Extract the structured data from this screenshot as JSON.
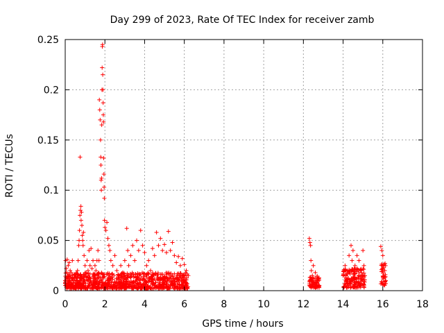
{
  "chart_data": {
    "type": "scatter",
    "title": "Day 299 of 2023, Rate Of TEC Index for receiver zamb",
    "xlabel": "GPS time / hours",
    "ylabel": "ROTI / TECUs",
    "xlim": [
      0,
      18
    ],
    "ylim": [
      0,
      0.25
    ],
    "x_ticks": [
      0,
      2,
      4,
      6,
      8,
      10,
      12,
      14,
      16,
      18
    ],
    "y_ticks": [
      0,
      0.05,
      0.1,
      0.15,
      0.2,
      0.25
    ],
    "x_tick_labels": [
      "0",
      "2",
      "4",
      "6",
      "8",
      "10",
      "12",
      "14",
      "16",
      "18"
    ],
    "y_tick_labels": [
      "0",
      "0.05",
      "0.1",
      "0.15",
      "0.2",
      "0.25"
    ],
    "grid": true,
    "marker": "+",
    "color": "#ff0000",
    "series": [
      {
        "values": [
          [
            0.0,
            0.01
          ],
          [
            0.02,
            0.03
          ],
          [
            0.05,
            0.022
          ],
          [
            0.08,
            0.018
          ],
          [
            0.1,
            0.031
          ],
          [
            0.12,
            0.012
          ],
          [
            0.15,
            0.025
          ],
          [
            0.18,
            0.008
          ],
          [
            0.2,
            0.028
          ],
          [
            0.22,
            0.015
          ],
          [
            0.25,
            0.02
          ],
          [
            0.28,
            0.005
          ],
          [
            0.3,
            0.018
          ],
          [
            0.33,
            0.012
          ],
          [
            0.36,
            0.03
          ],
          [
            0.4,
            0.01
          ],
          [
            0.45,
            0.016
          ],
          [
            0.5,
            0.008
          ],
          [
            0.55,
            0.014
          ],
          [
            0.6,
            0.01
          ],
          [
            0.62,
            0.02
          ],
          [
            0.65,
            0.03
          ],
          [
            0.68,
            0.045
          ],
          [
            0.7,
            0.05
          ],
          [
            0.72,
            0.06
          ],
          [
            0.74,
            0.075
          ],
          [
            0.75,
            0.133
          ],
          [
            0.77,
            0.08
          ],
          [
            0.79,
            0.084
          ],
          [
            0.8,
            0.07
          ],
          [
            0.82,
            0.078
          ],
          [
            0.84,
            0.065
          ],
          [
            0.86,
            0.055
          ],
          [
            0.88,
            0.05
          ],
          [
            0.9,
            0.045
          ],
          [
            0.92,
            0.058
          ],
          [
            0.95,
            0.035
          ],
          [
            1.0,
            0.025
          ],
          [
            1.05,
            0.018
          ],
          [
            1.1,
            0.03
          ],
          [
            1.15,
            0.02
          ],
          [
            1.2,
            0.04
          ],
          [
            1.25,
            0.025
          ],
          [
            1.3,
            0.042
          ],
          [
            1.35,
            0.022
          ],
          [
            1.4,
            0.03
          ],
          [
            1.45,
            0.015
          ],
          [
            1.5,
            0.025
          ],
          [
            1.55,
            0.02
          ],
          [
            1.6,
            0.03
          ],
          [
            1.65,
            0.04
          ],
          [
            1.7,
            0.03
          ],
          [
            1.72,
            0.19
          ],
          [
            1.74,
            0.18
          ],
          [
            1.76,
            0.17
          ],
          [
            1.78,
            0.15
          ],
          [
            1.79,
            0.133
          ],
          [
            1.8,
            0.125
          ],
          [
            1.81,
            0.11
          ],
          [
            1.82,
            0.1
          ],
          [
            1.83,
            0.112
          ],
          [
            1.84,
            0.165
          ],
          [
            1.85,
            0.2
          ],
          [
            1.86,
            0.222
          ],
          [
            1.87,
            0.243
          ],
          [
            1.88,
            0.245
          ],
          [
            1.89,
            0.215
          ],
          [
            1.9,
            0.2
          ],
          [
            1.91,
            0.187
          ],
          [
            1.92,
            0.175
          ],
          [
            1.93,
            0.168
          ],
          [
            1.94,
            0.132
          ],
          [
            1.95,
            0.116
          ],
          [
            1.96,
            0.103
          ],
          [
            1.97,
            0.092
          ],
          [
            1.98,
            0.07
          ],
          [
            2.0,
            0.063
          ],
          [
            2.05,
            0.06
          ],
          [
            2.1,
            0.068
          ],
          [
            2.15,
            0.052
          ],
          [
            2.2,
            0.045
          ],
          [
            2.25,
            0.04
          ],
          [
            2.3,
            0.03
          ],
          [
            2.4,
            0.025
          ],
          [
            2.5,
            0.035
          ],
          [
            2.6,
            0.02
          ],
          [
            2.7,
            0.015
          ],
          [
            2.8,
            0.025
          ],
          [
            2.9,
            0.018
          ],
          [
            3.0,
            0.03
          ],
          [
            3.1,
            0.062
          ],
          [
            3.15,
            0.04
          ],
          [
            3.2,
            0.025
          ],
          [
            3.3,
            0.035
          ],
          [
            3.4,
            0.045
          ],
          [
            3.5,
            0.03
          ],
          [
            3.6,
            0.05
          ],
          [
            3.7,
            0.04
          ],
          [
            3.8,
            0.06
          ],
          [
            3.9,
            0.045
          ],
          [
            4.0,
            0.038
          ],
          [
            4.1,
            0.025
          ],
          [
            4.2,
            0.03
          ],
          [
            4.3,
            0.02
          ],
          [
            4.4,
            0.042
          ],
          [
            4.5,
            0.035
          ],
          [
            4.6,
            0.058
          ],
          [
            4.7,
            0.045
          ],
          [
            4.8,
            0.052
          ],
          [
            4.9,
            0.04
          ],
          [
            5.0,
            0.046
          ],
          [
            5.1,
            0.038
          ],
          [
            5.2,
            0.059
          ],
          [
            5.3,
            0.04
          ],
          [
            5.4,
            0.048
          ],
          [
            5.5,
            0.035
          ],
          [
            5.6,
            0.028
          ],
          [
            5.7,
            0.034
          ],
          [
            5.8,
            0.025
          ],
          [
            5.9,
            0.032
          ],
          [
            6.0,
            0.026
          ],
          [
            6.1,
            0.02
          ],
          [
            6.2,
            0.015
          ],
          [
            12.3,
            0.052
          ],
          [
            12.33,
            0.048
          ],
          [
            12.36,
            0.045
          ],
          [
            12.38,
            0.03
          ],
          [
            12.4,
            0.02
          ],
          [
            12.45,
            0.015
          ],
          [
            12.5,
            0.025
          ],
          [
            12.6,
            0.018
          ],
          [
            12.7,
            0.01
          ],
          [
            12.8,
            0.005
          ],
          [
            14.0,
            0.015
          ],
          [
            14.1,
            0.025
          ],
          [
            14.2,
            0.02
          ],
          [
            14.3,
            0.035
          ],
          [
            14.4,
            0.045
          ],
          [
            14.45,
            0.03
          ],
          [
            14.5,
            0.04
          ],
          [
            14.6,
            0.025
          ],
          [
            14.7,
            0.035
          ],
          [
            14.8,
            0.03
          ],
          [
            14.9,
            0.02
          ],
          [
            15.0,
            0.04
          ],
          [
            15.05,
            0.025
          ],
          [
            15.1,
            0.015
          ],
          [
            15.9,
            0.044
          ],
          [
            15.95,
            0.04
          ],
          [
            16.0,
            0.035
          ],
          [
            16.05,
            0.025
          ],
          [
            16.1,
            0.02
          ],
          [
            16.15,
            0.01
          ]
        ]
      }
    ],
    "dense_bands": [
      {
        "x_start": 0.0,
        "x_end": 6.2,
        "y_min": 0.002,
        "y_max": 0.018
      },
      {
        "x_start": 12.3,
        "x_end": 12.8,
        "y_min": 0.003,
        "y_max": 0.015
      },
      {
        "x_start": 14.0,
        "x_end": 15.1,
        "y_min": 0.003,
        "y_max": 0.022
      },
      {
        "x_start": 15.9,
        "x_end": 16.15,
        "y_min": 0.005,
        "y_max": 0.028
      }
    ]
  }
}
